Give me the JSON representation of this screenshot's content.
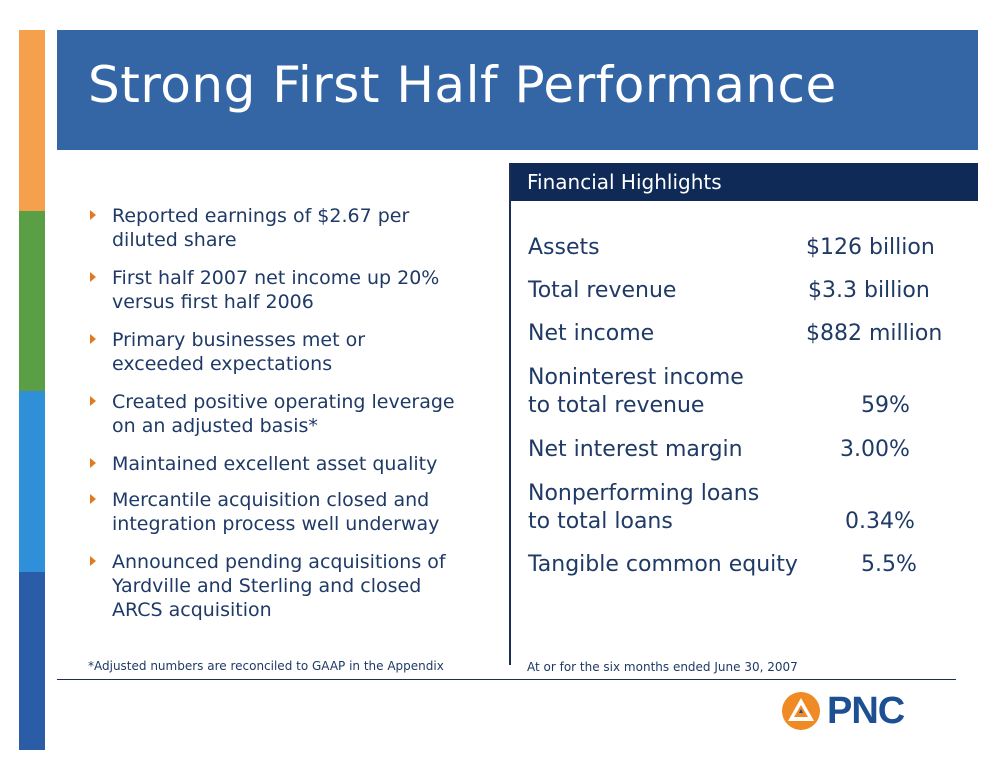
{
  "slide": {
    "title": "Strong First Half Performance"
  },
  "bullets": [
    {
      "line1": "Reported earnings of $2.67 per",
      "line2": "diluted share"
    },
    {
      "line1": "First half 2007 net income up 20%",
      "line2": "versus first half 2006"
    },
    {
      "line1": "Primary businesses met or",
      "line2": "exceeded expectations"
    },
    {
      "line1": "Created positive operating leverage",
      "line2": "on an adjusted basis*"
    },
    {
      "line1": "Maintained excellent asset quality"
    },
    {
      "line1": "Mercantile acquisition closed and",
      "line2": "integration process well underway"
    },
    {
      "line1": "Announced pending acquisitions of",
      "line2": "Yardville and Sterling and closed",
      "line3": "ARCS acquisition"
    }
  ],
  "footnote_left": "*Adjusted numbers are reconciled to GAAP in the Appendix",
  "financial_highlights": {
    "header": "Financial Highlights",
    "rows": [
      {
        "label": "Assets",
        "value": "$126 billion"
      },
      {
        "label": "Total revenue",
        "value": "$3.3 billion"
      },
      {
        "label": "Net income",
        "value": "$882 million"
      },
      {
        "label_line1": "Noninterest income",
        "label_line2": "to total revenue",
        "value": "59%"
      },
      {
        "label": "Net interest margin",
        "value": "3.00%"
      },
      {
        "label_line1": "Nonperforming loans",
        "label_line2": "to total loans",
        "value": "0.34%"
      },
      {
        "label": "Tangible common equity",
        "value": "5.5%"
      }
    ],
    "footnote": "At or for the six months ended June 30, 2007"
  },
  "logo": {
    "text": "PNC",
    "icon": "pnc-triangle-logo-icon"
  },
  "colors": {
    "title_bar": "#3466a6",
    "header_bar": "#0f2a57",
    "text": "#1f3a66",
    "bullet_arrow": "#e07a1f",
    "stripe_orange": "#f6a04d",
    "stripe_green": "#5a9e45",
    "stripe_lightblue": "#2f8fd9",
    "stripe_blue": "#2b5ca8",
    "logo_orange": "#f08a24",
    "logo_blue": "#1d4f93"
  }
}
